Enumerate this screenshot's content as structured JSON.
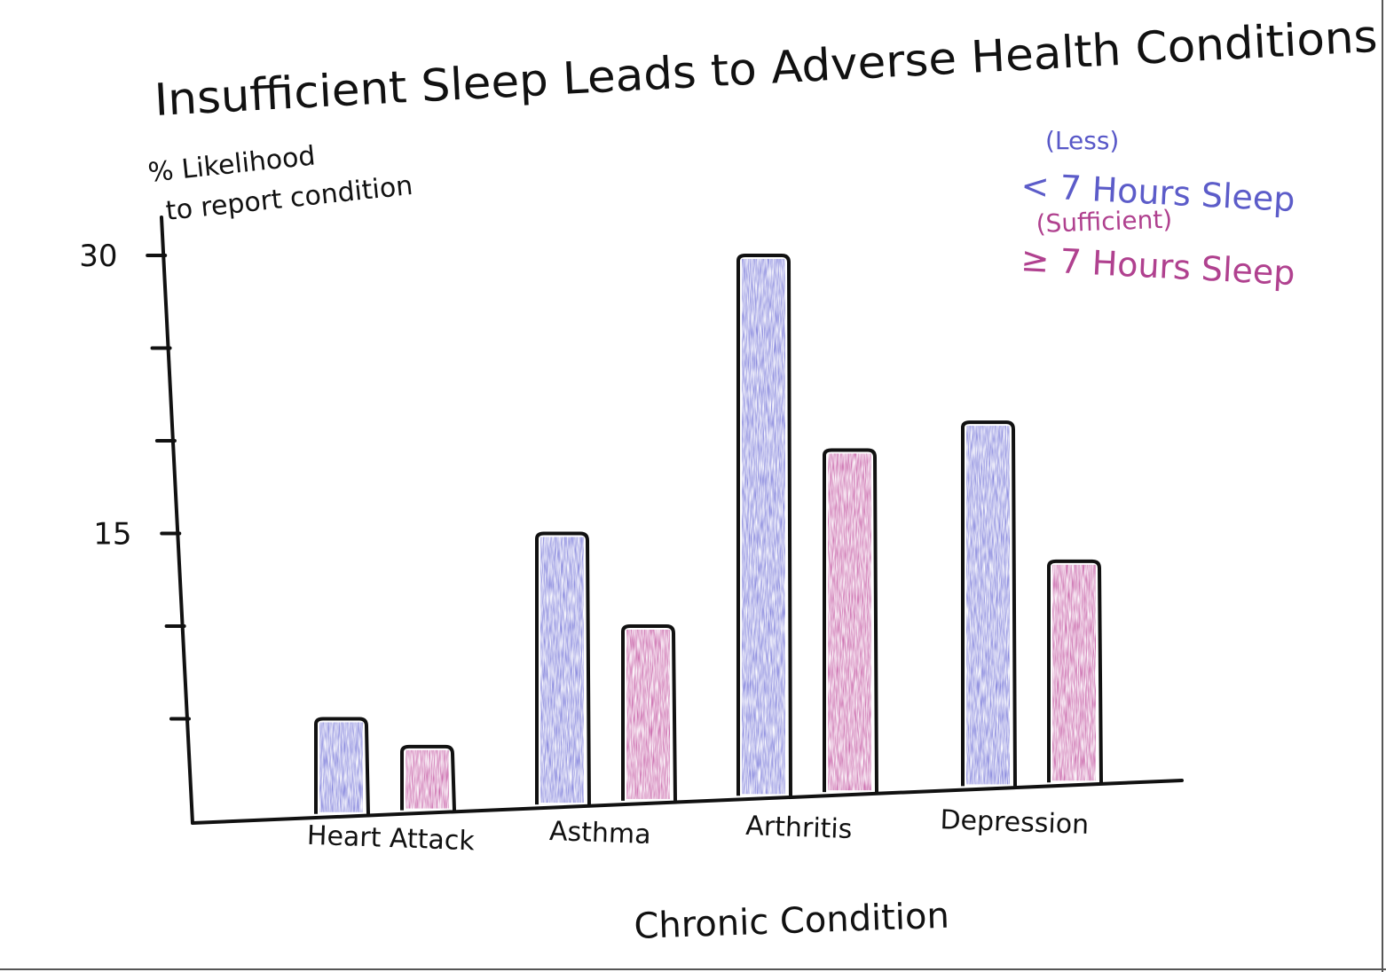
{
  "chart_data": {
    "type": "bar",
    "title": "Insufficient Sleep Leads to Adverse Health Conditions",
    "ylabel_line1": "% Likelihood",
    "ylabel_line2": "to report condition",
    "xlabel": "Chronic Condition",
    "ylim": [
      0,
      30
    ],
    "yticks": [
      {
        "value": 30,
        "label": "30"
      },
      {
        "value": 15,
        "label": "15"
      }
    ],
    "minor_ticks": [
      5,
      10,
      20,
      25
    ],
    "categories": [
      "Heart Attack",
      "Asthma",
      "Arthritis",
      "Depression"
    ],
    "series": [
      {
        "name": "< 7 Hours Sleep",
        "note": "(Less)",
        "color": "#6f6fd6",
        "values": [
          5,
          15,
          30,
          21
        ]
      },
      {
        "name": "≥ 7 Hours Sleep",
        "note": "(Sufficient)",
        "color": "#c1509e",
        "values": [
          3.5,
          10,
          19.5,
          13.5
        ]
      }
    ],
    "legend_position": "top-right",
    "grid": false
  }
}
